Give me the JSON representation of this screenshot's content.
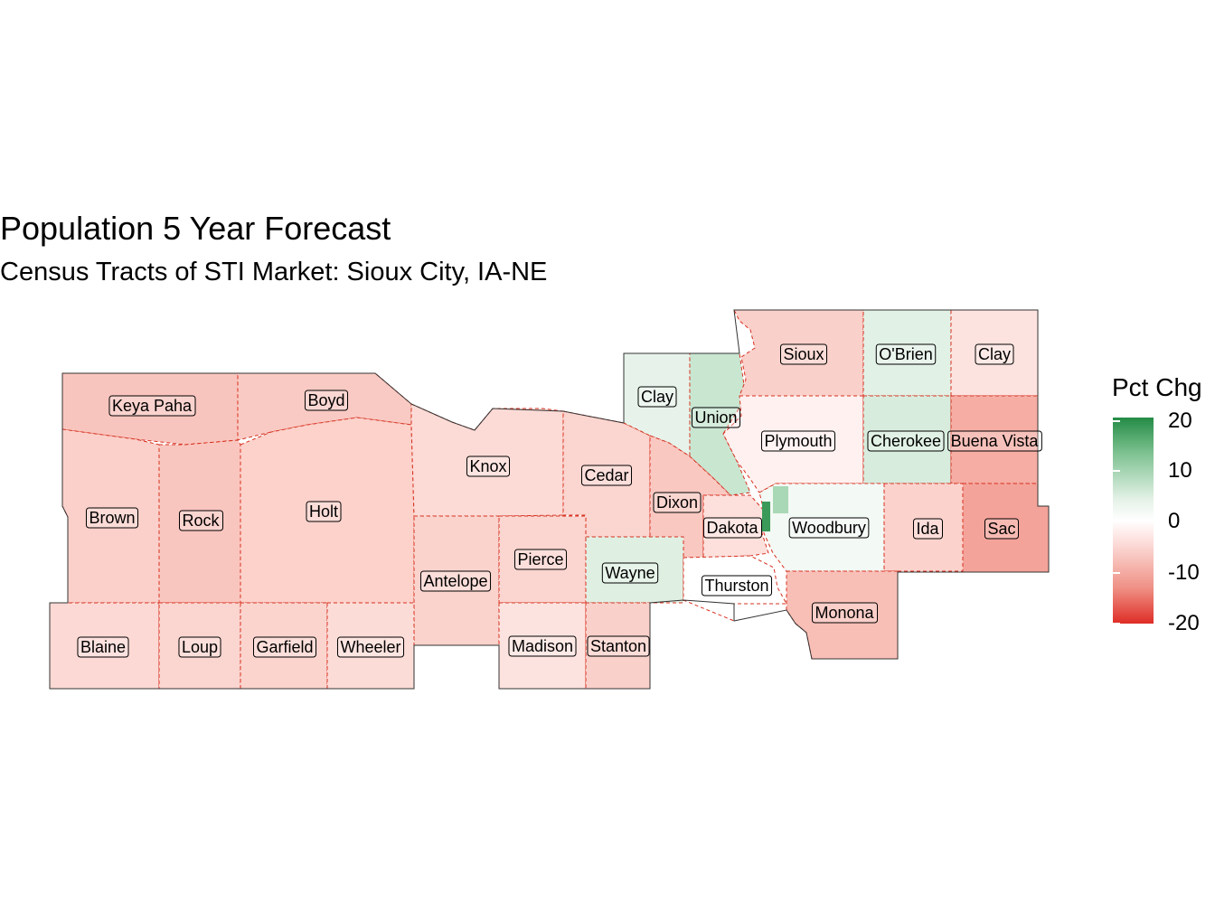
{
  "title": "Population 5 Year Forecast",
  "subtitle": "Census Tracts of STI Market: Sioux City, IA-NE",
  "legend": {
    "title": "Pct Chg",
    "ticks": [
      "20",
      "10",
      "0",
      "-10",
      "-20"
    ],
    "colors": {
      "high": "#238b45",
      "mid": "#ffffff",
      "low": "#de2d26"
    }
  },
  "counties": [
    {
      "name": "Keya Paha",
      "fill": "#f8c5be"
    },
    {
      "name": "Boyd",
      "fill": "#f9cac3"
    },
    {
      "name": "Brown",
      "fill": "#fbd0ca"
    },
    {
      "name": "Rock",
      "fill": "#f9c6bf"
    },
    {
      "name": "Holt",
      "fill": "#fcd2cb"
    },
    {
      "name": "Knox",
      "fill": "#fcdbd6"
    },
    {
      "name": "Cedar",
      "fill": "#fbd5cf"
    },
    {
      "name": "Clay",
      "fill": "#e7f3ea"
    },
    {
      "name": "Union",
      "fill": "#c9e6d1"
    },
    {
      "name": "Sioux",
      "fill": "#fad0ca"
    },
    {
      "name": "O'Brien",
      "fill": "#e2f1e6"
    },
    {
      "name": "Clay",
      "fill": "#fde3df"
    },
    {
      "name": "Plymouth",
      "fill": "#fff1ef"
    },
    {
      "name": "Cherokee",
      "fill": "#d7ecdd"
    },
    {
      "name": "Buena Vista",
      "fill": "#f5ada4"
    },
    {
      "name": "Dixon",
      "fill": "#f9c8c1"
    },
    {
      "name": "Dakota",
      "fill": "#fde0dc"
    },
    {
      "name": "Woodbury",
      "fill": "#f3f9f4"
    },
    {
      "name": "Ida",
      "fill": "#fbd2cc"
    },
    {
      "name": "Sac",
      "fill": "#f4a39a"
    },
    {
      "name": "Antelope",
      "fill": "#fad3cd"
    },
    {
      "name": "Pierce",
      "fill": "#fbd5cf"
    },
    {
      "name": "Wayne",
      "fill": "#dff0e3"
    },
    {
      "name": "Thurston",
      "fill": "#ffffff"
    },
    {
      "name": "Monona",
      "fill": "#f8bfb7"
    },
    {
      "name": "Blaine",
      "fill": "#fcd9d4"
    },
    {
      "name": "Loup",
      "fill": "#fbd5cf"
    },
    {
      "name": "Garfield",
      "fill": "#fbd4ce"
    },
    {
      "name": "Wheeler",
      "fill": "#fcdcd7"
    },
    {
      "name": "Madison",
      "fill": "#fde3df"
    },
    {
      "name": "Stanton",
      "fill": "#fad0ca"
    }
  ]
}
